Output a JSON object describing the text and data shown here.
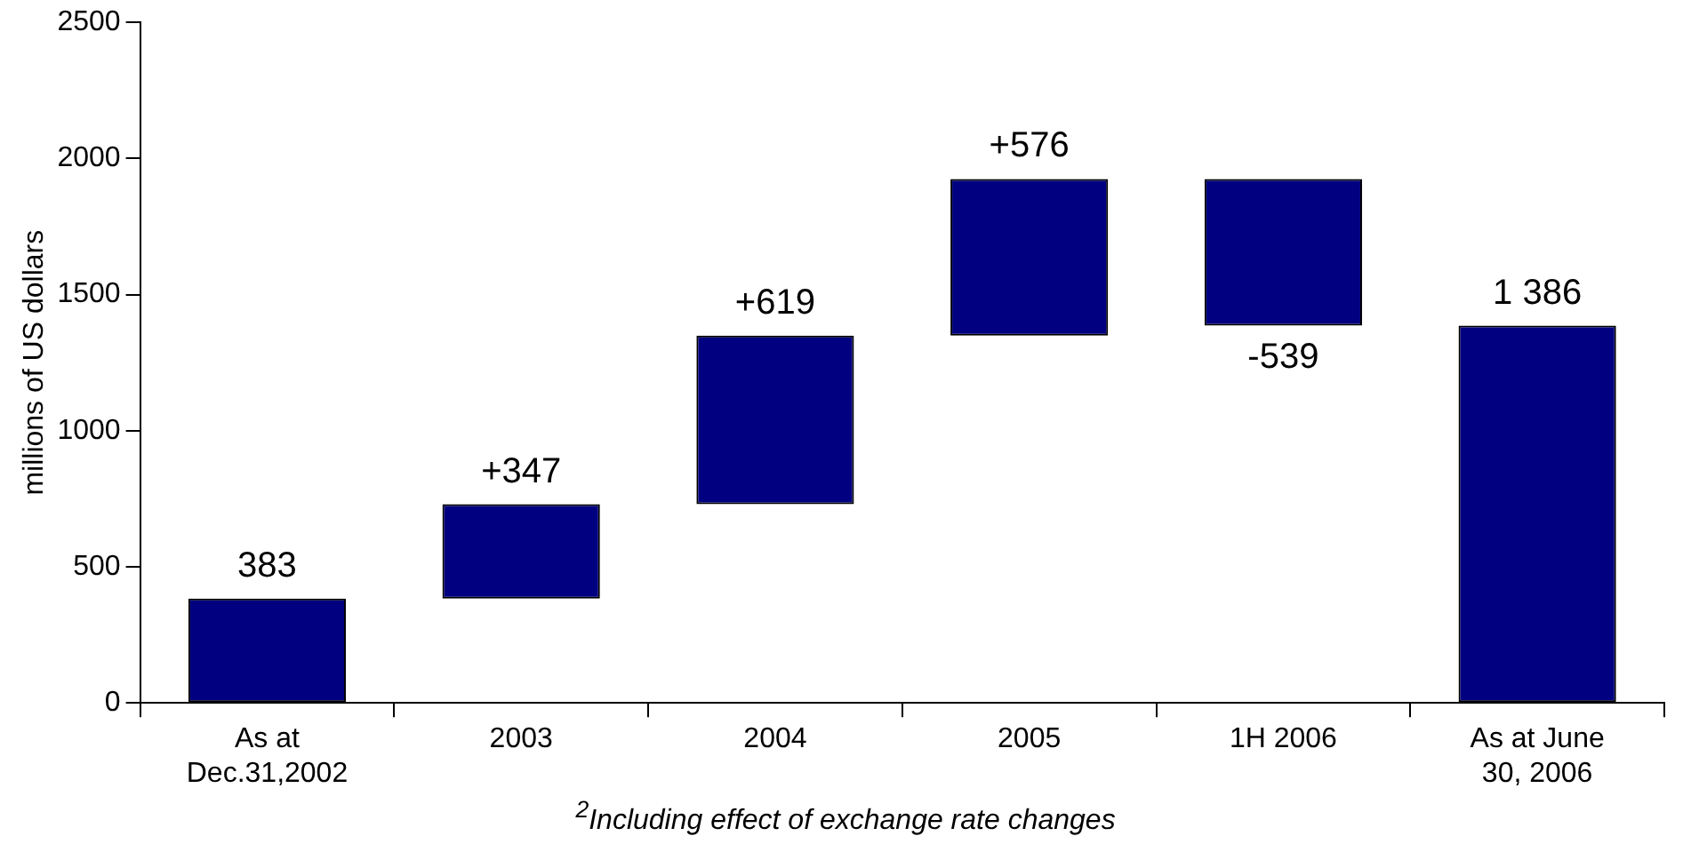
{
  "chart_data": {
    "type": "bar",
    "ylabel": "millions of US dollars",
    "categories": [
      "As at Dec.31,2002",
      "2003",
      "2004",
      "2005",
      "1H 2006",
      "As at June 30, 2006"
    ],
    "values": [
      383,
      347,
      619,
      576,
      -539,
      1386
    ],
    "base": [
      0,
      383,
      730,
      1349,
      1925,
      0
    ],
    "value_labels": [
      "383",
      "+347",
      "+619",
      "+576",
      "-539",
      "1 386"
    ],
    "color": "#000080",
    "ylim": [
      0,
      2500
    ],
    "yticks": [
      0,
      500,
      1000,
      1500,
      2000,
      2500
    ],
    "grid": false,
    "legend": false,
    "annotations": [
      "$^{2}$Including effect of exchange rate changes"
    ]
  }
}
